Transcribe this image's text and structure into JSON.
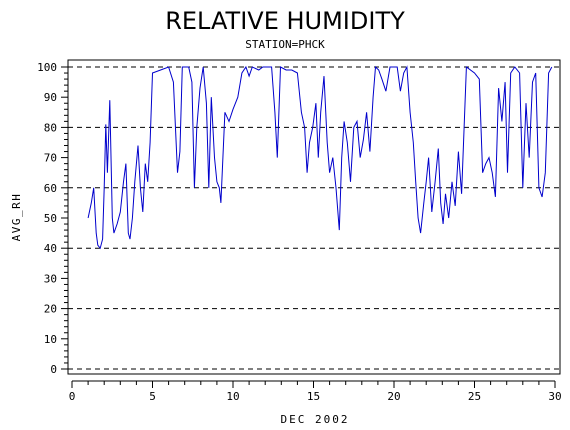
{
  "chart_data": {
    "type": "line",
    "title": "RELATIVE HUMIDITY",
    "subtitle": "STATION=PHCK",
    "xlabel": "DEC 2002",
    "ylabel": "AVG_RH",
    "xlim": [
      0,
      30
    ],
    "ylim": [
      0,
      100
    ],
    "x_ticks": [
      "0",
      "5",
      "10",
      "15",
      "20",
      "25",
      "30"
    ],
    "y_ticks": [
      "0",
      "10",
      "20",
      "30",
      "40",
      "50",
      "60",
      "70",
      "80",
      "90",
      "100"
    ],
    "grid": "dashed horizontal at 0, 20, 40, 60, 80, 100",
    "line_color": "#0000cc",
    "series": [
      {
        "values": [
          [
            1.0,
            50
          ],
          [
            1.2,
            55
          ],
          [
            1.35,
            60
          ],
          [
            1.5,
            45
          ],
          [
            1.6,
            41
          ],
          [
            1.75,
            40
          ],
          [
            1.9,
            43
          ],
          [
            2.0,
            60
          ],
          [
            2.1,
            81
          ],
          [
            2.2,
            65
          ],
          [
            2.35,
            89
          ],
          [
            2.5,
            50
          ],
          [
            2.6,
            45
          ],
          [
            2.8,
            48
          ],
          [
            3.0,
            52
          ],
          [
            3.2,
            62
          ],
          [
            3.35,
            68
          ],
          [
            3.5,
            45
          ],
          [
            3.6,
            43
          ],
          [
            3.75,
            50
          ],
          [
            3.9,
            62
          ],
          [
            4.1,
            74
          ],
          [
            4.25,
            60
          ],
          [
            4.4,
            52
          ],
          [
            4.55,
            68
          ],
          [
            4.7,
            62
          ],
          [
            4.85,
            75
          ],
          [
            5.0,
            98
          ],
          [
            5.5,
            99
          ],
          [
            6.0,
            100
          ],
          [
            6.3,
            95
          ],
          [
            6.55,
            65
          ],
          [
            6.7,
            72
          ],
          [
            6.85,
            100
          ],
          [
            7.0,
            100
          ],
          [
            7.25,
            100
          ],
          [
            7.45,
            95
          ],
          [
            7.6,
            60
          ],
          [
            7.75,
            80
          ],
          [
            7.95,
            93
          ],
          [
            8.15,
            100
          ],
          [
            8.35,
            88
          ],
          [
            8.5,
            60
          ],
          [
            8.65,
            90
          ],
          [
            8.85,
            70
          ],
          [
            9.0,
            62
          ],
          [
            9.15,
            60
          ],
          [
            9.25,
            55
          ],
          [
            9.5,
            85
          ],
          [
            9.75,
            82
          ],
          [
            10.0,
            86
          ],
          [
            10.3,
            90
          ],
          [
            10.55,
            98
          ],
          [
            10.8,
            100
          ],
          [
            11.0,
            97
          ],
          [
            11.2,
            100
          ],
          [
            11.6,
            99
          ],
          [
            11.85,
            100
          ],
          [
            12.15,
            100
          ],
          [
            12.4,
            100
          ],
          [
            12.6,
            85
          ],
          [
            12.75,
            70
          ],
          [
            12.95,
            100
          ],
          [
            13.3,
            99
          ],
          [
            13.65,
            99
          ],
          [
            14.0,
            98
          ],
          [
            14.25,
            85
          ],
          [
            14.45,
            80
          ],
          [
            14.6,
            65
          ],
          [
            14.75,
            75
          ],
          [
            14.95,
            80
          ],
          [
            15.15,
            88
          ],
          [
            15.3,
            70
          ],
          [
            15.45,
            85
          ],
          [
            15.65,
            97
          ],
          [
            15.85,
            75
          ],
          [
            16.0,
            65
          ],
          [
            16.2,
            70
          ],
          [
            16.4,
            60
          ],
          [
            16.6,
            46
          ],
          [
            16.75,
            70
          ],
          [
            16.9,
            82
          ],
          [
            17.1,
            75
          ],
          [
            17.3,
            62
          ],
          [
            17.5,
            80
          ],
          [
            17.7,
            82
          ],
          [
            17.9,
            70
          ],
          [
            18.1,
            76
          ],
          [
            18.3,
            85
          ],
          [
            18.5,
            72
          ],
          [
            18.7,
            90
          ],
          [
            18.85,
            100
          ],
          [
            19.05,
            99
          ],
          [
            19.25,
            96
          ],
          [
            19.5,
            92
          ],
          [
            19.75,
            100
          ],
          [
            20.2,
            100
          ],
          [
            20.4,
            92
          ],
          [
            20.6,
            98
          ],
          [
            20.8,
            100
          ],
          [
            21.0,
            85
          ],
          [
            21.2,
            75
          ],
          [
            21.35,
            62
          ],
          [
            21.5,
            50
          ],
          [
            21.65,
            45
          ],
          [
            21.85,
            55
          ],
          [
            22.0,
            62
          ],
          [
            22.15,
            70
          ],
          [
            22.35,
            52
          ],
          [
            22.55,
            62
          ],
          [
            22.75,
            73
          ],
          [
            22.9,
            55
          ],
          [
            23.05,
            48
          ],
          [
            23.2,
            58
          ],
          [
            23.4,
            50
          ],
          [
            23.6,
            62
          ],
          [
            23.8,
            54
          ],
          [
            24.0,
            72
          ],
          [
            24.2,
            58
          ],
          [
            24.5,
            100
          ],
          [
            25.0,
            98
          ],
          [
            25.3,
            96
          ],
          [
            25.5,
            65
          ],
          [
            25.7,
            68
          ],
          [
            25.9,
            70
          ],
          [
            26.1,
            65
          ],
          [
            26.3,
            57
          ],
          [
            26.5,
            93
          ],
          [
            26.7,
            82
          ],
          [
            26.9,
            95
          ],
          [
            27.05,
            65
          ],
          [
            27.25,
            98
          ],
          [
            27.5,
            100
          ],
          [
            27.8,
            98
          ],
          [
            28.0,
            60
          ],
          [
            28.2,
            88
          ],
          [
            28.4,
            70
          ],
          [
            28.6,
            95
          ],
          [
            28.8,
            98
          ],
          [
            29.0,
            60
          ],
          [
            29.2,
            57
          ],
          [
            29.4,
            65
          ],
          [
            29.6,
            98
          ],
          [
            29.8,
            100
          ]
        ]
      }
    ]
  }
}
